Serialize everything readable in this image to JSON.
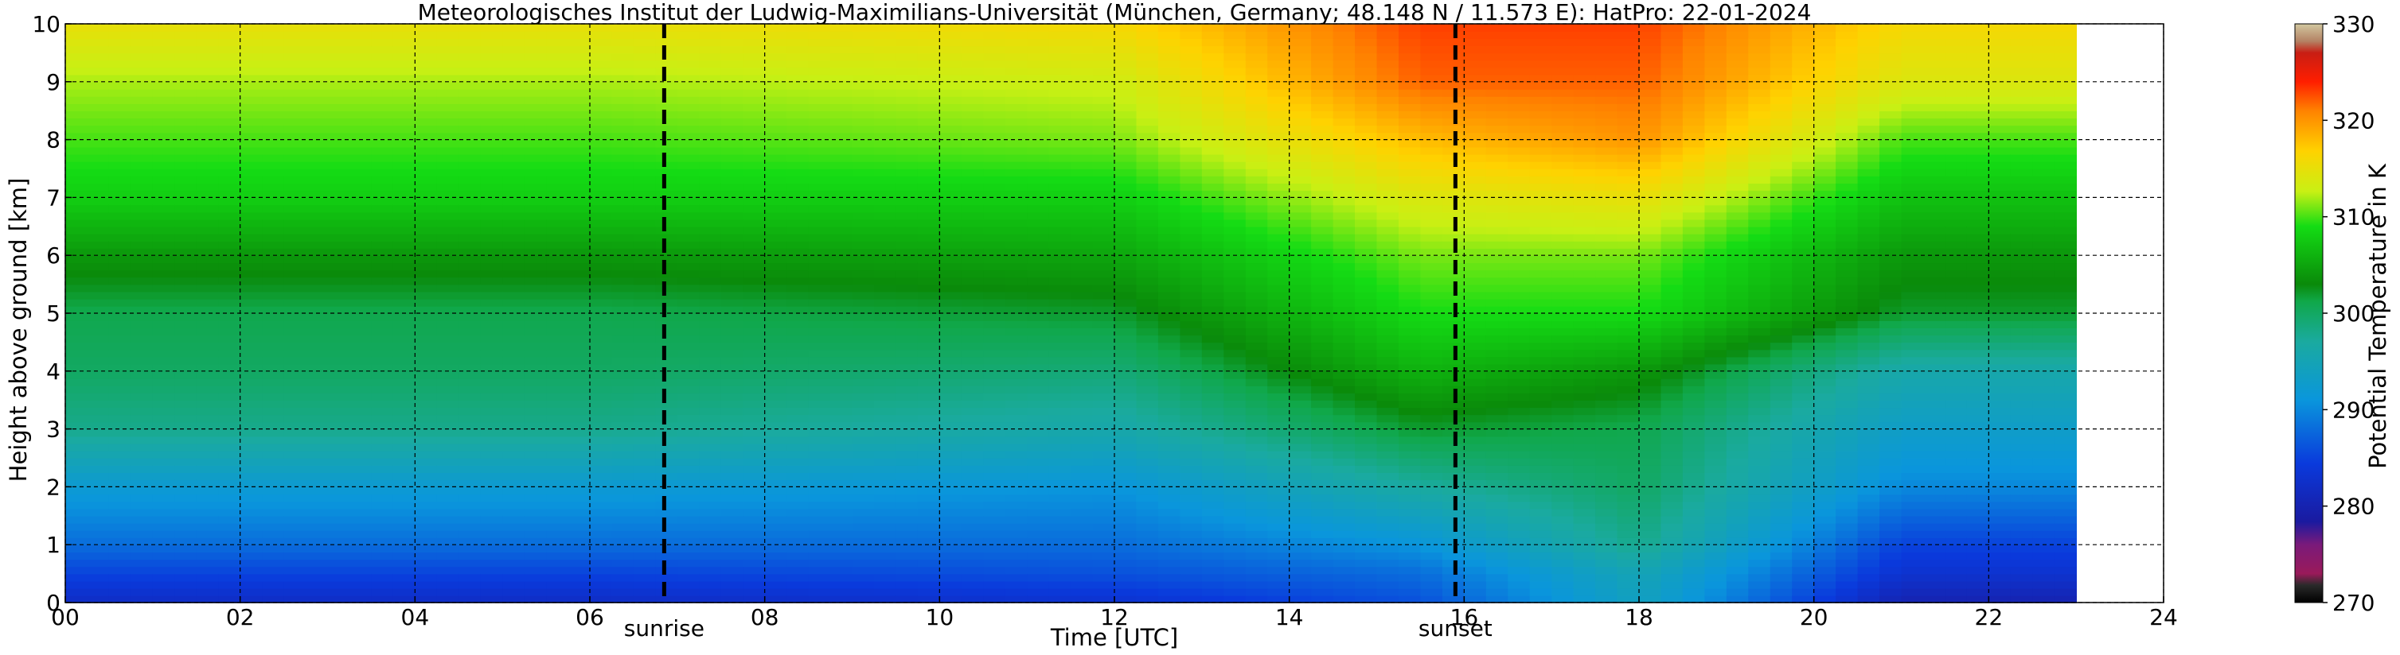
{
  "chart_data": {
    "type": "heatmap",
    "title": "Meteorologisches Institut der Ludwig-Maximilians-Universität (München, Germany; 48.148 N / 11.573 E):    HatPro: 22-01-2024",
    "xlabel": "Time [UTC]",
    "ylabel": "Height above ground [km]",
    "xlim": [
      0,
      24
    ],
    "ylim": [
      0,
      10
    ],
    "x_ticks": [
      "00",
      "02",
      "04",
      "06",
      "08",
      "10",
      "12",
      "14",
      "16",
      "18",
      "20",
      "22",
      "24"
    ],
    "y_ticks": [
      "0",
      "1",
      "2",
      "3",
      "4",
      "5",
      "6",
      "7",
      "8",
      "9",
      "10"
    ],
    "grid": true,
    "data_end_hour": 23,
    "markers": [
      {
        "label": "sunrise",
        "x": 6.85
      },
      {
        "label": "sunset",
        "x": 15.9
      }
    ],
    "colorbar": {
      "label": "Potential Temperature in K",
      "range": [
        270,
        330
      ],
      "ticks": [
        "270",
        "280",
        "290",
        "300",
        "310",
        "320",
        "330"
      ]
    },
    "field_samples": {
      "heights_km": [
        0,
        0.5,
        1,
        2,
        3,
        4,
        5,
        6,
        7,
        8,
        9,
        10
      ],
      "columns": [
        {
          "hour": 0,
          "theta_K": [
            282,
            285,
            288,
            292,
            298,
            300,
            301,
            304,
            308,
            310,
            312,
            315
          ]
        },
        {
          "hour": 6,
          "theta_K": [
            282,
            285,
            288,
            292,
            298,
            300,
            301,
            304,
            308,
            310,
            312,
            315
          ]
        },
        {
          "hour": 12,
          "theta_K": [
            283,
            286,
            288,
            291,
            296,
            299,
            302,
            305,
            308,
            311,
            313,
            316
          ]
        },
        {
          "hour": 15.5,
          "theta_K": [
            286,
            288,
            291,
            297,
            302,
            306,
            309,
            311,
            314,
            318,
            322,
            323
          ]
        },
        {
          "hour": 18,
          "theta_K": [
            294,
            295,
            298,
            300,
            301,
            304,
            309,
            311,
            315,
            320,
            322,
            323
          ]
        },
        {
          "hour": 21,
          "theta_K": [
            280,
            283,
            285,
            290,
            293,
            296,
            302,
            304,
            307,
            310,
            314,
            316
          ]
        }
      ]
    }
  }
}
